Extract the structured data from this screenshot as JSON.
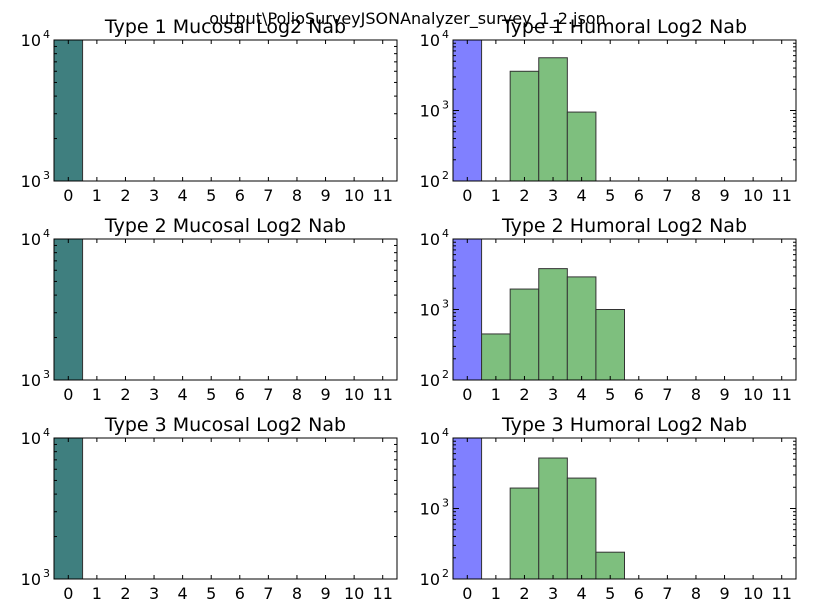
{
  "suptitle": "output\\PolioSurveyJSONAnalyzer_survey_1_2.json",
  "colors": {
    "blue": "#8080ff",
    "green": "#7ebf7e",
    "teal": "#3f7f7f",
    "edge": "#333333"
  },
  "chart_data": [
    {
      "id": "t1-mucosal",
      "type": "bar",
      "title": "Type 1 Mucosal Log2 Nab",
      "yscale": "log",
      "ylim": [
        1000,
        10000
      ],
      "ytick_labels": [
        "10^3",
        "10^4"
      ],
      "categories": [
        "0",
        "1",
        "2",
        "3",
        "4",
        "5",
        "6",
        "7",
        "8",
        "9",
        "10",
        "11"
      ],
      "series": [
        {
          "color": "#3f7f7f",
          "values": [
            10000,
            0,
            0,
            0,
            0,
            0,
            0,
            0,
            0,
            0,
            0,
            0
          ]
        }
      ]
    },
    {
      "id": "t1-humoral",
      "type": "bar",
      "title": "Type 1 Humoral Log2 Nab",
      "yscale": "log",
      "ylim": [
        100,
        10000
      ],
      "ytick_labels": [
        "10^2",
        "10^3",
        "10^4"
      ],
      "categories": [
        "0",
        "1",
        "2",
        "3",
        "4",
        "5",
        "6",
        "7",
        "8",
        "9",
        "10",
        "11"
      ],
      "series": [
        {
          "color": "#8080ff",
          "values": [
            10000,
            0,
            0,
            0,
            0,
            0,
            0,
            0,
            0,
            0,
            0,
            0
          ]
        },
        {
          "color": "#7ebf7e",
          "values": [
            0,
            0,
            3600,
            5600,
            950,
            0,
            0,
            0,
            0,
            0,
            0,
            0
          ]
        }
      ]
    },
    {
      "id": "t2-mucosal",
      "type": "bar",
      "title": "Type 2 Mucosal Log2 Nab",
      "yscale": "log",
      "ylim": [
        1000,
        10000
      ],
      "ytick_labels": [
        "10^3",
        "10^4"
      ],
      "categories": [
        "0",
        "1",
        "2",
        "3",
        "4",
        "5",
        "6",
        "7",
        "8",
        "9",
        "10",
        "11"
      ],
      "series": [
        {
          "color": "#3f7f7f",
          "values": [
            10000,
            0,
            0,
            0,
            0,
            0,
            0,
            0,
            0,
            0,
            0,
            0
          ]
        }
      ]
    },
    {
      "id": "t2-humoral",
      "type": "bar",
      "title": "Type 2 Humoral Log2 Nab",
      "yscale": "log",
      "ylim": [
        100,
        10000
      ],
      "ytick_labels": [
        "10^2",
        "10^3",
        "10^4"
      ],
      "categories": [
        "0",
        "1",
        "2",
        "3",
        "4",
        "5",
        "6",
        "7",
        "8",
        "9",
        "10",
        "11"
      ],
      "series": [
        {
          "color": "#8080ff",
          "values": [
            10000,
            0,
            0,
            0,
            0,
            0,
            0,
            0,
            0,
            0,
            0,
            0
          ]
        },
        {
          "color": "#7ebf7e",
          "values": [
            0,
            450,
            1950,
            3800,
            2900,
            1000,
            0,
            0,
            0,
            0,
            0,
            0
          ]
        }
      ]
    },
    {
      "id": "t3-mucosal",
      "type": "bar",
      "title": "Type 3 Mucosal Log2 Nab",
      "yscale": "log",
      "ylim": [
        1000,
        10000
      ],
      "ytick_labels": [
        "10^3",
        "10^4"
      ],
      "categories": [
        "0",
        "1",
        "2",
        "3",
        "4",
        "5",
        "6",
        "7",
        "8",
        "9",
        "10",
        "11"
      ],
      "series": [
        {
          "color": "#3f7f7f",
          "values": [
            10000,
            0,
            0,
            0,
            0,
            0,
            0,
            0,
            0,
            0,
            0,
            0
          ]
        }
      ]
    },
    {
      "id": "t3-humoral",
      "type": "bar",
      "title": "Type 3 Humoral Log2 Nab",
      "yscale": "log",
      "ylim": [
        100,
        10000
      ],
      "ytick_labels": [
        "10^2",
        "10^3",
        "10^4"
      ],
      "categories": [
        "0",
        "1",
        "2",
        "3",
        "4",
        "5",
        "6",
        "7",
        "8",
        "9",
        "10",
        "11"
      ],
      "series": [
        {
          "color": "#8080ff",
          "values": [
            10000,
            0,
            0,
            0,
            0,
            0,
            0,
            0,
            0,
            0,
            0,
            0
          ]
        },
        {
          "color": "#7ebf7e",
          "values": [
            0,
            0,
            1950,
            5200,
            2700,
            240,
            0,
            0,
            0,
            0,
            0,
            0
          ]
        }
      ]
    }
  ]
}
